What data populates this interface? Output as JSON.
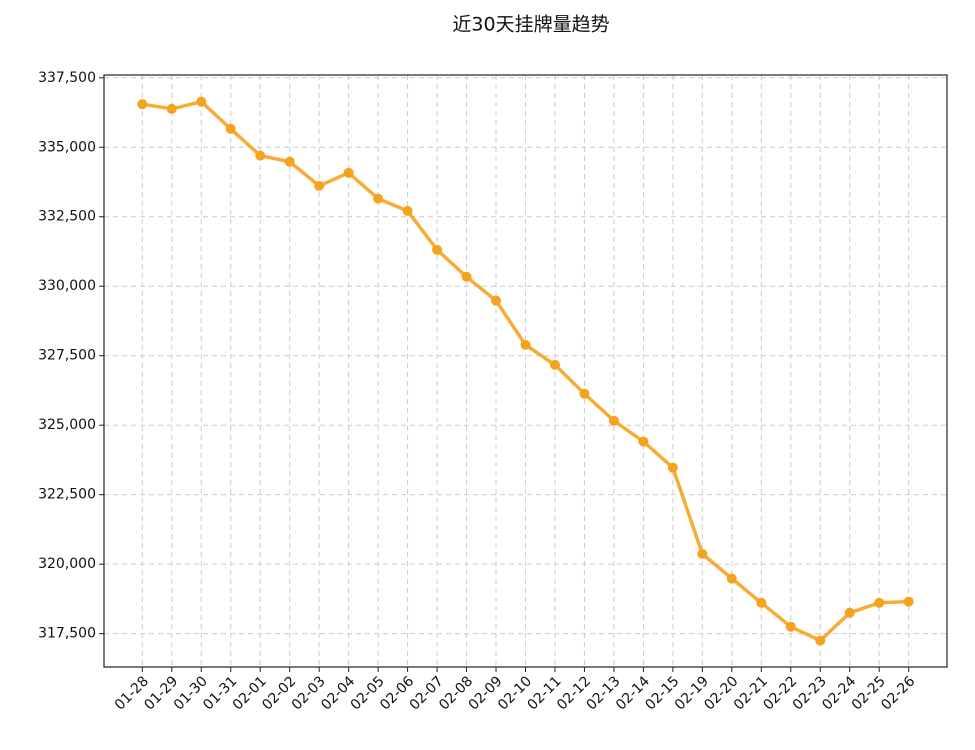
{
  "chart_data": {
    "type": "line",
    "title": "近30天挂牌量趋势",
    "categories": [
      "01-28",
      "01-29",
      "01-30",
      "01-31",
      "02-01",
      "02-02",
      "02-03",
      "02-04",
      "02-05",
      "02-06",
      "02-07",
      "02-08",
      "02-09",
      "02-10",
      "02-11",
      "02-12",
      "02-13",
      "02-14",
      "02-15",
      "02-19",
      "02-20",
      "02-21",
      "02-22",
      "02-23",
      "02-24",
      "02-25",
      "02-26"
    ],
    "series": [
      {
        "color": "#f5a31f",
        "values": [
          336550,
          336380,
          336640,
          335660,
          334700,
          334480,
          333610,
          334080,
          333150,
          332710,
          331310,
          330340,
          329480,
          327890,
          327170,
          326130,
          325160,
          324410,
          323470,
          320370,
          319480,
          318610,
          317750,
          317250,
          318250,
          318610,
          318650
        ]
      }
    ],
    "ylim": [
      316300,
      337600
    ],
    "yticks": [
      {
        "value": 317500,
        "label": "317,500"
      },
      {
        "value": 320000,
        "label": "320,000"
      },
      {
        "value": 322500,
        "label": "322,500"
      },
      {
        "value": 325000,
        "label": "325,000"
      },
      {
        "value": 327500,
        "label": "327,500"
      },
      {
        "value": 330000,
        "label": "330,000"
      },
      {
        "value": 332500,
        "label": "332,500"
      },
      {
        "value": 335000,
        "label": "335,000"
      },
      {
        "value": 337500,
        "label": "337,500"
      }
    ],
    "grid": true
  }
}
